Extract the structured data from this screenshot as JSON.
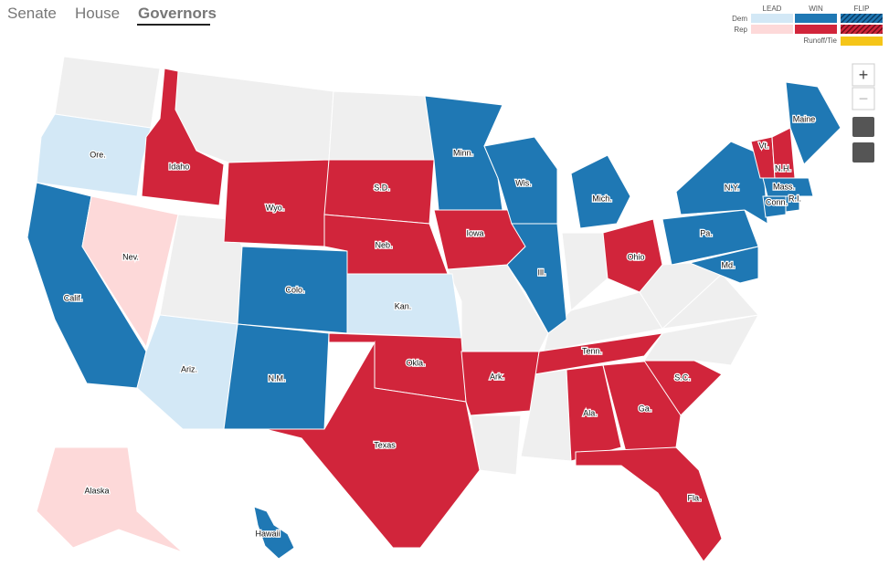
{
  "tabs": [
    "Senate",
    "House",
    "Governors"
  ],
  "active_tab": 2,
  "legend": {
    "columns": [
      "LEAD",
      "WIN",
      "FLIP"
    ],
    "rows": [
      "Dem",
      "Rep"
    ],
    "runoff": "Runoff/Tie"
  },
  "colors": {
    "dem_lead": "#d3e8f6",
    "dem_win": "#1f78b4",
    "rep_lead": "#fdd9d9",
    "rep_win": "#d1253b",
    "runoff": "#f5c518",
    "none": "#efefef"
  },
  "zoom_in": "+",
  "zoom_out": "−",
  "states": [
    {
      "label": "Ore.",
      "status": "dem_lead"
    },
    {
      "label": "Idaho",
      "status": "rep_win"
    },
    {
      "label": "Calif.",
      "status": "dem_win"
    },
    {
      "label": "Nev.",
      "status": "rep_lead"
    },
    {
      "label": "Ariz.",
      "status": "dem_lead"
    },
    {
      "label": "Wyo.",
      "status": "rep_win"
    },
    {
      "label": "Colo.",
      "status": "dem_win"
    },
    {
      "label": "N.M.",
      "status": "dem_win"
    },
    {
      "label": "S.D.",
      "status": "rep_win"
    },
    {
      "label": "Neb.",
      "status": "rep_win"
    },
    {
      "label": "Kan.",
      "status": "dem_lead"
    },
    {
      "label": "Okla.",
      "status": "rep_win"
    },
    {
      "label": "Texas",
      "status": "rep_win"
    },
    {
      "label": "Minn.",
      "status": "dem_win"
    },
    {
      "label": "Iowa",
      "status": "rep_win"
    },
    {
      "label": "Wis.",
      "status": "dem_win"
    },
    {
      "label": "Ill.",
      "status": "dem_win"
    },
    {
      "label": "Mich.",
      "status": "dem_win"
    },
    {
      "label": "Ohio",
      "status": "rep_win"
    },
    {
      "label": "Tenn.",
      "status": "rep_win"
    },
    {
      "label": "Ark.",
      "status": "rep_win"
    },
    {
      "label": "Ala.",
      "status": "rep_win"
    },
    {
      "label": "Ga.",
      "status": "rep_win"
    },
    {
      "label": "S.C.",
      "status": "rep_win"
    },
    {
      "label": "Fla.",
      "status": "rep_win"
    },
    {
      "label": "Pa.",
      "status": "dem_win"
    },
    {
      "label": "N.Y.",
      "status": "dem_win"
    },
    {
      "label": "Md.",
      "status": "dem_win"
    },
    {
      "label": "Vt.",
      "status": "rep_win"
    },
    {
      "label": "N.H.",
      "status": "rep_win"
    },
    {
      "label": "Maine",
      "status": "dem_win"
    },
    {
      "label": "Mass.",
      "status": "dem_win"
    },
    {
      "label": "Conn.",
      "status": "dem_win"
    },
    {
      "label": "R.I.",
      "status": "dem_win"
    },
    {
      "label": "Alaska",
      "status": "rep_lead"
    },
    {
      "label": "Hawaii",
      "status": "dem_win"
    }
  ]
}
